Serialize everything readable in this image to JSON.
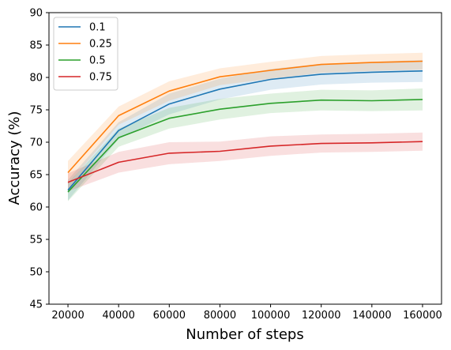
{
  "chart_data": {
    "type": "line",
    "title": "",
    "xlabel": "Number of steps",
    "ylabel": "Accuracy (%)",
    "xlim": [
      12500,
      167500
    ],
    "ylim": [
      45,
      90
    ],
    "xticks": [
      20000,
      40000,
      60000,
      80000,
      100000,
      120000,
      140000,
      160000
    ],
    "yticks": [
      45,
      50,
      55,
      60,
      65,
      70,
      75,
      80,
      85,
      90
    ],
    "grid": false,
    "legend_position": "top-left",
    "x": [
      20000,
      40000,
      60000,
      80000,
      100000,
      120000,
      140000,
      160000
    ],
    "series": [
      {
        "name": "0.1",
        "color": "#1f77b4",
        "values": [
          62.6,
          71.8,
          75.9,
          78.2,
          79.7,
          80.5,
          80.8,
          81.0
        ],
        "lower": [
          61.0,
          70.5,
          74.3,
          76.6,
          78.1,
          78.9,
          79.2,
          79.3
        ],
        "upper": [
          64.2,
          73.1,
          77.5,
          79.8,
          81.3,
          82.1,
          82.4,
          82.7
        ]
      },
      {
        "name": "0.25",
        "color": "#ff7f0e",
        "values": [
          65.3,
          74.1,
          77.9,
          80.1,
          81.1,
          82.0,
          82.3,
          82.5
        ],
        "lower": [
          63.5,
          72.7,
          76.4,
          78.8,
          79.8,
          80.7,
          81.0,
          81.2
        ],
        "upper": [
          67.1,
          75.5,
          79.4,
          81.4,
          82.4,
          83.3,
          83.6,
          83.8
        ]
      },
      {
        "name": "0.5",
        "color": "#2ca02c",
        "values": [
          62.3,
          70.7,
          73.7,
          75.1,
          76.0,
          76.5,
          76.4,
          76.6
        ],
        "lower": [
          60.9,
          69.3,
          72.1,
          73.5,
          74.5,
          74.9,
          74.8,
          74.9
        ],
        "upper": [
          63.7,
          72.1,
          75.3,
          76.7,
          77.5,
          78.1,
          78.0,
          78.3
        ]
      },
      {
        "name": "0.75",
        "color": "#d62728",
        "values": [
          63.8,
          66.9,
          68.3,
          68.6,
          69.4,
          69.8,
          69.9,
          70.1
        ],
        "lower": [
          62.4,
          65.3,
          66.6,
          67.1,
          67.9,
          68.4,
          68.5,
          68.7
        ],
        "upper": [
          65.2,
          68.5,
          70.0,
          70.1,
          70.9,
          71.2,
          71.3,
          71.5
        ]
      }
    ]
  }
}
